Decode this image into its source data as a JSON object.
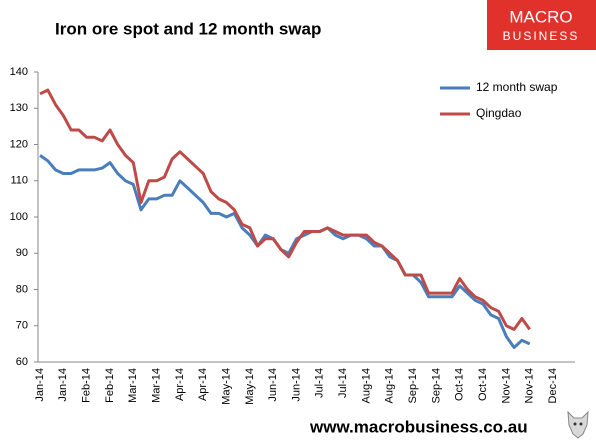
{
  "chart_data": {
    "type": "line",
    "title": "Iron ore spot and 12 month swap",
    "categories": [
      "Jan-14",
      null,
      null,
      "Jan-14",
      null,
      null,
      "Feb-14",
      null,
      null,
      "Feb-14",
      null,
      null,
      "Mar-14",
      null,
      null,
      "Mar-14",
      null,
      null,
      "Apr-14",
      null,
      null,
      "Apr-14",
      null,
      null,
      "May-14",
      null,
      null,
      "May-14",
      null,
      null,
      "Jun-14",
      null,
      null,
      "Jun-14",
      null,
      null,
      "Jul-14",
      null,
      null,
      "Jul-14",
      null,
      null,
      "Aug-14",
      null,
      null,
      "Aug-14",
      null,
      null,
      "Sep-14",
      null,
      null,
      "Sep-14",
      null,
      null,
      "Oct-14",
      null,
      null,
      "Oct-14",
      null,
      null,
      "Nov-14",
      null,
      null,
      "Nov-14",
      null,
      null,
      "Dec-14"
    ],
    "series": [
      {
        "name": "12 month swap",
        "color": "#4a7ebb",
        "values": [
          117,
          115.5,
          113,
          112,
          112,
          113,
          113,
          113,
          113.5,
          115,
          112,
          110,
          109,
          102,
          105,
          105,
          106,
          106,
          110,
          108,
          106,
          104,
          101,
          101,
          100,
          101,
          97,
          95,
          92,
          95,
          94,
          91,
          90,
          94,
          95,
          96,
          96,
          97,
          95,
          94,
          95,
          95,
          94,
          92,
          92,
          89,
          88,
          84,
          84,
          82,
          78,
          78,
          78,
          78,
          81,
          79,
          77,
          76,
          73,
          72,
          67,
          64,
          66,
          65,
          null,
          null,
          null
        ]
      },
      {
        "name": "Qingdao",
        "color": "#be4b48",
        "values": [
          134,
          135,
          131,
          128,
          124,
          124,
          122,
          122,
          121,
          124,
          120,
          117,
          115,
          104,
          110,
          110,
          111,
          116,
          118,
          116,
          114,
          112,
          107,
          105,
          104,
          102,
          98,
          97,
          92,
          94,
          94,
          91,
          89,
          93,
          96,
          96,
          96,
          97,
          96,
          95,
          95,
          95,
          95,
          93,
          92,
          90,
          88,
          84,
          84,
          84,
          79,
          79,
          79,
          79,
          83,
          80,
          78,
          77,
          75,
          74,
          70,
          69,
          72,
          69,
          null,
          null,
          null
        ]
      }
    ],
    "ylim": [
      60,
      140
    ],
    "yticks": [
      60,
      70,
      80,
      90,
      100,
      110,
      120,
      130,
      140
    ],
    "grid": false,
    "legend": "top-right"
  },
  "branding": {
    "logo": [
      "MACRO",
      "BUSINESS"
    ],
    "footer": "www.macrobusiness.co.au"
  }
}
